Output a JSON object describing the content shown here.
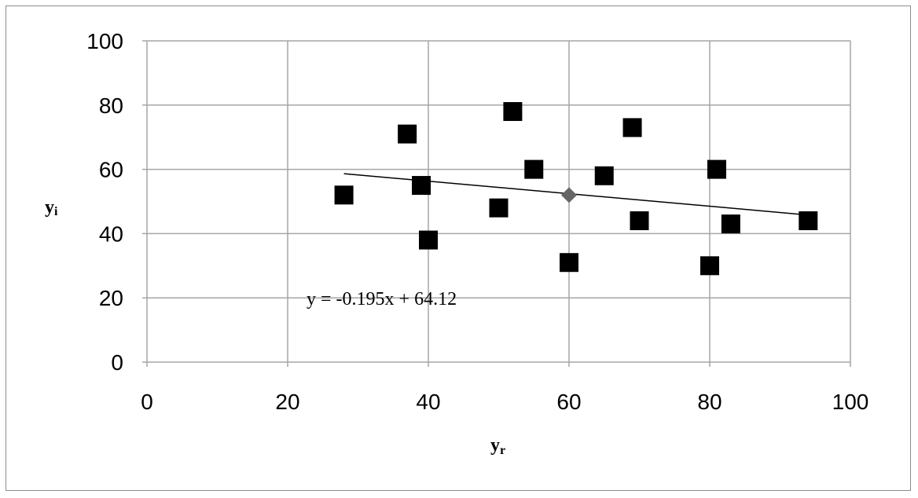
{
  "chart_data": {
    "type": "scatter",
    "title": "",
    "xlabel": "y",
    "xlabel_sub": "r",
    "ylabel": "y",
    "ylabel_sub": "i",
    "xlim": [
      0,
      100
    ],
    "ylim": [
      0,
      100
    ],
    "xticks": [
      "0",
      "20",
      "40",
      "60",
      "80",
      "100"
    ],
    "yticks": [
      "0",
      "20",
      "40",
      "60",
      "80",
      "100"
    ],
    "grid": true,
    "legend": "none",
    "series": [
      {
        "marker": "square",
        "color": "#000000",
        "points": [
          {
            "x": 28,
            "y": 52
          },
          {
            "x": 37,
            "y": 71
          },
          {
            "x": 39,
            "y": 55
          },
          {
            "x": 40,
            "y": 38
          },
          {
            "x": 50,
            "y": 48
          },
          {
            "x": 52,
            "y": 78
          },
          {
            "x": 55,
            "y": 60
          },
          {
            "x": 60,
            "y": 31
          },
          {
            "x": 65,
            "y": 58
          },
          {
            "x": 69,
            "y": 73
          },
          {
            "x": 70,
            "y": 44
          },
          {
            "x": 80,
            "y": 30
          },
          {
            "x": 81,
            "y": 60
          },
          {
            "x": 83,
            "y": 43
          },
          {
            "x": 94,
            "y": 44
          }
        ]
      },
      {
        "marker": "diamond",
        "color": "#666666",
        "points": [
          {
            "x": 60,
            "y": 52
          }
        ]
      }
    ],
    "trendline": {
      "slope": -0.195,
      "intercept": 64.12,
      "x_range": [
        28,
        94
      ],
      "color": "#000000"
    },
    "annotation": "y = -0.195x + 64.12"
  }
}
